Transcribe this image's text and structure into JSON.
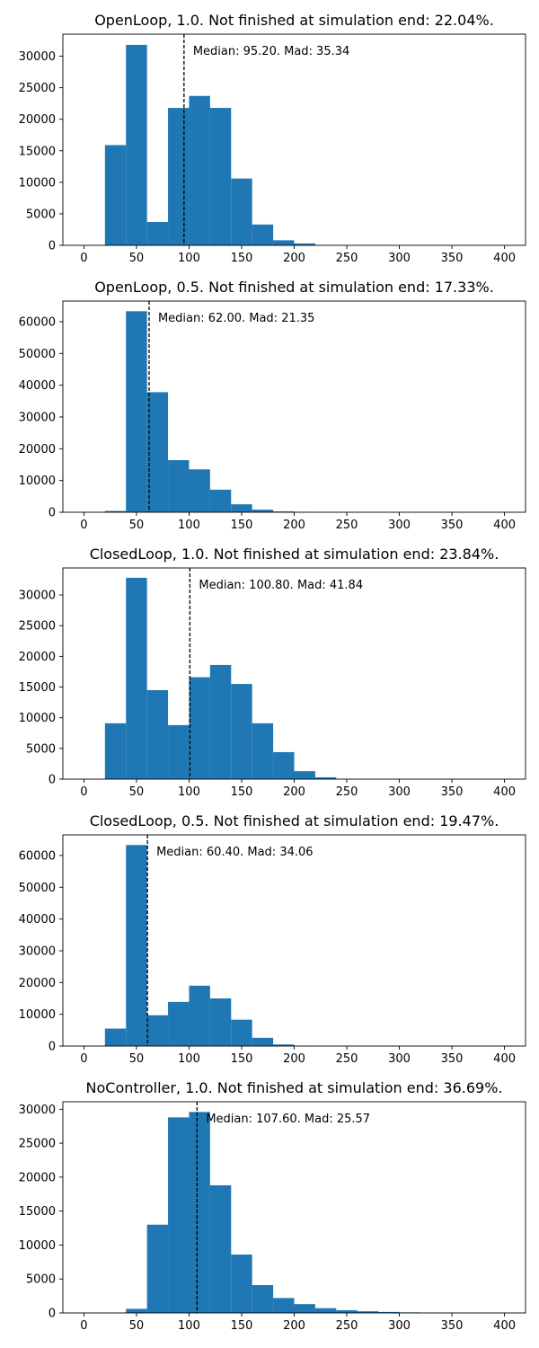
{
  "figure": {
    "bar_color": "#1f77b4"
  },
  "chart_data": [
    {
      "type": "bar",
      "title": "OpenLoop, 1.0. Not finished at simulation end: 22.04%.",
      "annotation": "Median: 95.20. Mad: 35.34",
      "median": 95.2,
      "bin_edges": [
        0,
        20,
        40,
        60,
        80,
        100,
        120,
        140,
        160,
        180,
        200,
        220,
        240,
        260,
        280,
        300,
        320,
        340,
        360,
        380,
        400
      ],
      "values": [
        0,
        15900,
        31800,
        3700,
        21800,
        23700,
        21800,
        10600,
        3300,
        800,
        300,
        40,
        10,
        0,
        0,
        0,
        0,
        0,
        0,
        0
      ],
      "xlim": [
        -20,
        420
      ],
      "ylim": [
        0,
        33500
      ],
      "xticks": [
        0,
        50,
        100,
        150,
        200,
        250,
        300,
        350,
        400
      ],
      "yticks": [
        0,
        5000,
        10000,
        15000,
        20000,
        25000,
        30000
      ]
    },
    {
      "type": "bar",
      "title": "OpenLoop, 0.5. Not finished at simulation end: 17.33%.",
      "annotation": "Median: 62.00. Mad: 21.35",
      "median": 62.0,
      "bin_edges": [
        0,
        20,
        40,
        60,
        80,
        100,
        120,
        140,
        160,
        180,
        200,
        220,
        240,
        260,
        280,
        300,
        320,
        340,
        360,
        380,
        400
      ],
      "values": [
        0,
        400,
        63300,
        37800,
        16400,
        13500,
        7100,
        2500,
        800,
        250,
        60,
        10,
        0,
        0,
        0,
        0,
        0,
        0,
        0,
        0
      ],
      "xlim": [
        -20,
        420
      ],
      "ylim": [
        0,
        66500
      ],
      "xticks": [
        0,
        50,
        100,
        150,
        200,
        250,
        300,
        350,
        400
      ],
      "yticks": [
        0,
        10000,
        20000,
        30000,
        40000,
        50000,
        60000
      ]
    },
    {
      "type": "bar",
      "title": "ClosedLoop, 1.0. Not finished at simulation end: 23.84%.",
      "annotation": "Median: 100.80. Mad: 41.84",
      "median": 100.8,
      "bin_edges": [
        0,
        20,
        40,
        60,
        80,
        100,
        120,
        140,
        160,
        180,
        200,
        220,
        240,
        260,
        280,
        300,
        320,
        340,
        360,
        380,
        400
      ],
      "values": [
        0,
        9100,
        32800,
        14500,
        8800,
        16600,
        18600,
        15500,
        9100,
        4400,
        1300,
        300,
        40,
        0,
        0,
        0,
        0,
        0,
        0,
        0
      ],
      "xlim": [
        -20,
        420
      ],
      "ylim": [
        0,
        34400
      ],
      "xticks": [
        0,
        50,
        100,
        150,
        200,
        250,
        300,
        350,
        400
      ],
      "yticks": [
        0,
        5000,
        10000,
        15000,
        20000,
        25000,
        30000
      ]
    },
    {
      "type": "bar",
      "title": "ClosedLoop, 0.5. Not finished at simulation end: 19.47%.",
      "annotation": "Median: 60.40. Mad: 34.06",
      "median": 60.4,
      "bin_edges": [
        0,
        20,
        40,
        60,
        80,
        100,
        120,
        140,
        160,
        180,
        200,
        220,
        240,
        260,
        280,
        300,
        320,
        340,
        360,
        380,
        400
      ],
      "values": [
        0,
        5500,
        63300,
        9700,
        13900,
        19000,
        15000,
        8300,
        2600,
        500,
        40,
        0,
        0,
        0,
        0,
        0,
        0,
        0,
        0,
        0
      ],
      "xlim": [
        -20,
        420
      ],
      "ylim": [
        0,
        66500
      ],
      "xticks": [
        0,
        50,
        100,
        150,
        200,
        250,
        300,
        350,
        400
      ],
      "yticks": [
        0,
        10000,
        20000,
        30000,
        40000,
        50000,
        60000
      ]
    },
    {
      "type": "bar",
      "title": "NoController, 1.0. Not finished at simulation end: 36.69%.",
      "annotation": "Median: 107.60. Mad: 25.57",
      "median": 107.6,
      "bin_edges": [
        0,
        20,
        40,
        60,
        80,
        100,
        120,
        140,
        160,
        180,
        200,
        220,
        240,
        260,
        280,
        300,
        320,
        340,
        360,
        380,
        400
      ],
      "values": [
        0,
        0,
        600,
        13000,
        28800,
        29600,
        18800,
        8600,
        4100,
        2200,
        1300,
        700,
        400,
        250,
        150,
        80,
        30,
        10,
        0,
        0
      ],
      "xlim": [
        -20,
        420
      ],
      "ylim": [
        0,
        31100
      ],
      "xticks": [
        0,
        50,
        100,
        150,
        200,
        250,
        300,
        350,
        400
      ],
      "yticks": [
        0,
        5000,
        10000,
        15000,
        20000,
        25000,
        30000
      ]
    }
  ]
}
